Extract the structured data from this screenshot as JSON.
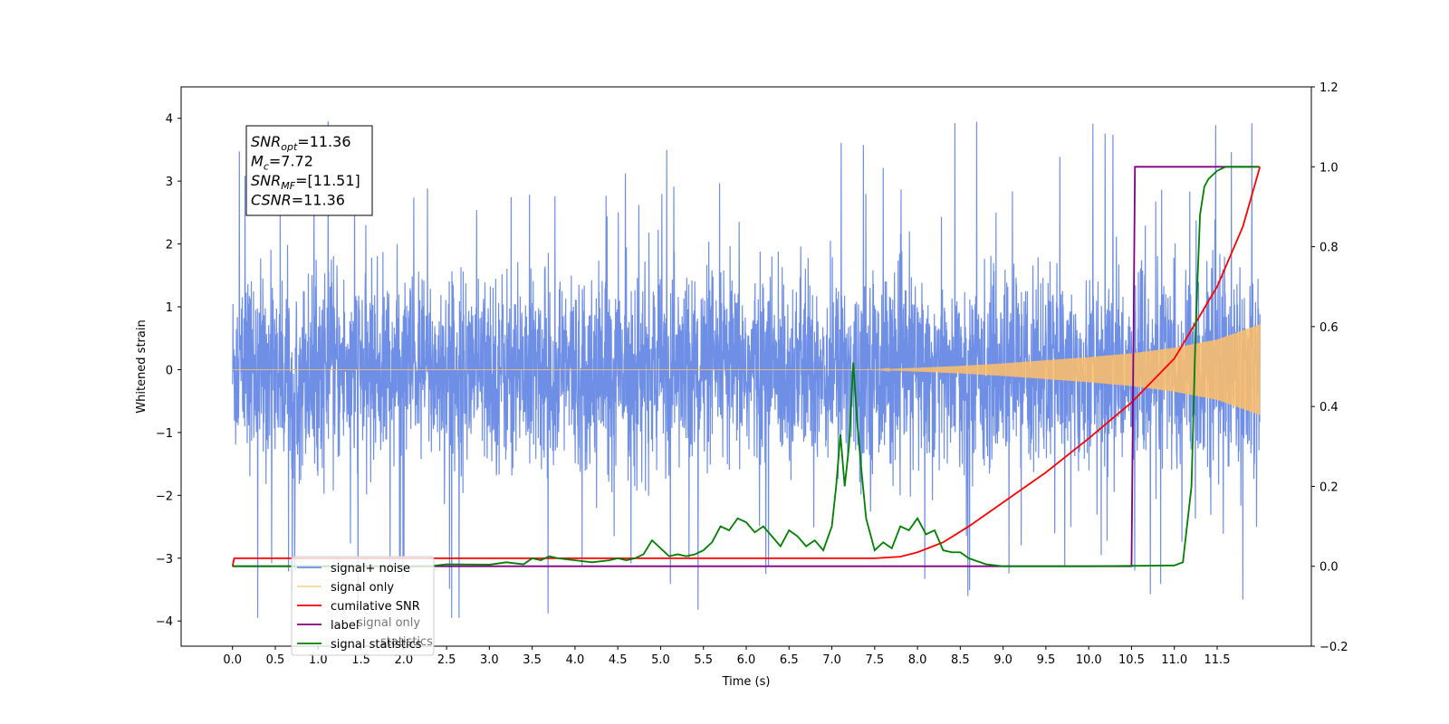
{
  "chart_data": {
    "type": "line",
    "xlabel": "Time (s)",
    "ylabel": "Whitened strain",
    "xlim": [
      -0.6,
      12.6
    ],
    "ylim": [
      -4.4,
      4.5
    ],
    "y2lim": [
      -0.2,
      1.2
    ],
    "x_ticks": [
      0.0,
      0.5,
      1.0,
      1.5,
      2.0,
      2.5,
      3.0,
      3.5,
      4.0,
      4.5,
      5.0,
      5.5,
      6.0,
      6.5,
      7.0,
      7.5,
      8.0,
      8.5,
      9.0,
      9.5,
      10.0,
      10.5,
      11.0,
      11.5
    ],
    "x_tick_labels": [
      "0.0",
      "0.5",
      "1.0",
      "1.5",
      "2.0",
      "2.5",
      "3.0",
      "3.5",
      "4.0",
      "4.5",
      "5.0",
      "5.5",
      "6.0",
      "6.5",
      "7.0",
      "7.5",
      "8.0",
      "8.5",
      "9.0",
      "9.5",
      "10.0",
      "10.5",
      "11.0",
      "11.5"
    ],
    "y_ticks": [
      -4,
      -3,
      -2,
      -1,
      0,
      1,
      2,
      3,
      4
    ],
    "y_tick_labels": [
      "−4",
      "−3",
      "−2",
      "−1",
      "0",
      "1",
      "2",
      "3",
      "4"
    ],
    "y2_ticks": [
      -0.2,
      0.0,
      0.2,
      0.4,
      0.6,
      0.8,
      1.0,
      1.2
    ],
    "y2_tick_labels": [
      "−0.2",
      "0.0",
      "0.2",
      "0.4",
      "0.6",
      "0.8",
      "1.0",
      "1.2"
    ],
    "grid": false,
    "legend_position": "bottom-left",
    "annotation": [
      {
        "sym": "SNR",
        "sub": "opt",
        "rest": "=11.36"
      },
      {
        "sym": "M",
        "sub": "c",
        "rest": "=7.72"
      },
      {
        "sym": "SNR",
        "sub": "MF",
        "rest": "=[11.51]"
      },
      {
        "sym": "CSNR",
        "sub": "",
        "rest": "=11.36"
      }
    ],
    "series": [
      {
        "name": "signal+ noise",
        "axis": "left",
        "color": "#6f8fe6",
        "t_start": 0.0,
        "t_end": 12.0,
        "noise_envelope": {
          "core_amplitude": 1.6,
          "peak_amplitude": 3.5,
          "max_peak": 4.1,
          "min_peak": -3.9
        }
      },
      {
        "name": "signal only",
        "axis": "left",
        "color": "#ffbf66",
        "x": [
          0.0,
          7.5,
          8.0,
          8.5,
          9.0,
          9.5,
          10.0,
          10.5,
          11.0,
          11.5,
          12.0
        ],
        "amplitude": [
          0.0,
          0.0,
          0.03,
          0.06,
          0.1,
          0.15,
          0.2,
          0.26,
          0.35,
          0.48,
          0.72
        ]
      },
      {
        "name": "cumilative SNR",
        "axis": "right",
        "color": "#ff0000",
        "x": [
          0.0,
          0.02,
          7.5,
          7.8,
          8.0,
          8.3,
          8.6,
          9.0,
          9.5,
          10.0,
          10.5,
          11.0,
          11.5,
          11.8,
          12.0
        ],
        "y": [
          0.0,
          0.02,
          0.02,
          0.024,
          0.035,
          0.06,
          0.1,
          0.16,
          0.235,
          0.32,
          0.41,
          0.52,
          0.7,
          0.85,
          1.0
        ]
      },
      {
        "name": "label",
        "axis": "right",
        "color": "#800080",
        "x": [
          0.0,
          10.5,
          10.54,
          11.0,
          11.99
        ],
        "y": [
          0.0,
          0.0,
          1.0,
          1.0,
          1.0
        ]
      },
      {
        "name": "signal statistics",
        "axis": "right",
        "color": "#008000",
        "x": [
          0.0,
          2.3,
          2.5,
          3.0,
          3.2,
          3.4,
          3.5,
          3.6,
          3.7,
          3.8,
          4.0,
          4.2,
          4.4,
          4.5,
          4.6,
          4.7,
          4.8,
          4.9,
          5.0,
          5.1,
          5.2,
          5.3,
          5.4,
          5.5,
          5.6,
          5.7,
          5.8,
          5.9,
          6.0,
          6.1,
          6.2,
          6.3,
          6.4,
          6.5,
          6.6,
          6.7,
          6.8,
          6.9,
          7.0,
          7.05,
          7.1,
          7.15,
          7.2,
          7.25,
          7.3,
          7.35,
          7.4,
          7.5,
          7.6,
          7.7,
          7.8,
          7.9,
          8.0,
          8.1,
          8.2,
          8.3,
          8.4,
          8.5,
          8.6,
          8.8,
          9.0,
          10.0,
          11.0,
          11.1,
          11.2,
          11.25,
          11.3,
          11.35,
          11.4,
          11.5,
          11.6,
          11.8,
          11.99
        ],
        "y": [
          0.0,
          0.0,
          0.005,
          0.004,
          0.01,
          0.005,
          0.02,
          0.015,
          0.025,
          0.02,
          0.015,
          0.01,
          0.015,
          0.02,
          0.015,
          0.02,
          0.03,
          0.065,
          0.045,
          0.025,
          0.03,
          0.025,
          0.03,
          0.04,
          0.06,
          0.1,
          0.09,
          0.12,
          0.11,
          0.085,
          0.1,
          0.075,
          0.05,
          0.09,
          0.075,
          0.05,
          0.065,
          0.04,
          0.1,
          0.2,
          0.33,
          0.2,
          0.3,
          0.51,
          0.35,
          0.23,
          0.12,
          0.04,
          0.06,
          0.045,
          0.1,
          0.09,
          0.12,
          0.08,
          0.09,
          0.04,
          0.035,
          0.035,
          0.02,
          0.005,
          0.0,
          0.0,
          0.002,
          0.01,
          0.2,
          0.6,
          0.88,
          0.95,
          0.97,
          0.99,
          1.0,
          1.0,
          1.0
        ]
      }
    ],
    "legend_overlay": [
      "signal only",
      "statistics"
    ]
  }
}
